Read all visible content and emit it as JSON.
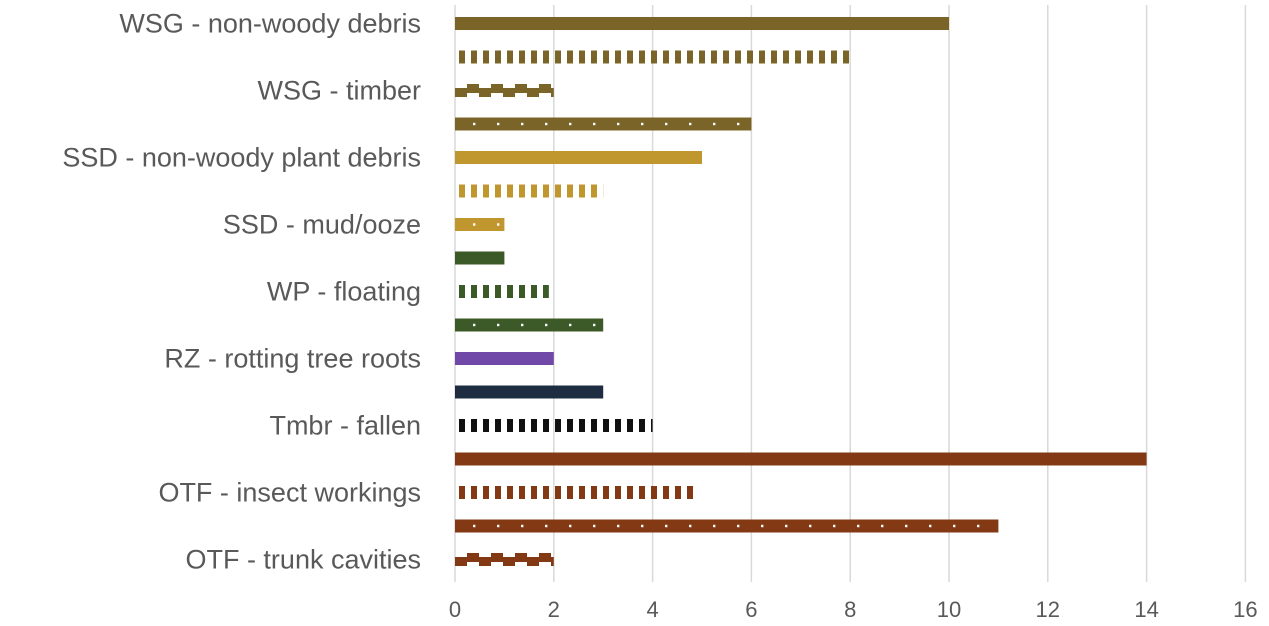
{
  "chart_data": {
    "type": "bar",
    "orientation": "horizontal",
    "title": "",
    "xlabel": "",
    "ylabel": "",
    "xlim": [
      0,
      16
    ],
    "xticks": [
      0,
      2,
      4,
      6,
      8,
      10,
      12,
      14,
      16
    ],
    "grid": "vertical",
    "legend": "none",
    "rows": [
      {
        "label": "WSG - non-woody debris",
        "value": 10,
        "color": "#7a6428",
        "pattern": "solid"
      },
      {
        "label": "",
        "value": 8,
        "color": "#7a6428",
        "pattern": "dashed"
      },
      {
        "label": "WSG - timber",
        "value": 2,
        "color": "#7a6428",
        "pattern": "checker"
      },
      {
        "label": "",
        "value": 6,
        "color": "#7a6428",
        "pattern": "dotted"
      },
      {
        "label": "SSD - non-woody plant debris",
        "value": 5,
        "color": "#c0962f",
        "pattern": "solid"
      },
      {
        "label": "",
        "value": 3,
        "color": "#c0962f",
        "pattern": "dashed"
      },
      {
        "label": "SSD - mud/ooze",
        "value": 1,
        "color": "#c0962f",
        "pattern": "dotted"
      },
      {
        "label": "",
        "value": 1,
        "color": "#3c5a28",
        "pattern": "solid"
      },
      {
        "label": "WP - floating",
        "value": 1.9,
        "color": "#3c5a28",
        "pattern": "dashed"
      },
      {
        "label": "",
        "value": 3,
        "color": "#3c5a28",
        "pattern": "dotted"
      },
      {
        "label": "RZ - rotting tree roots",
        "value": 2,
        "color": "#7048a8",
        "pattern": "solid"
      },
      {
        "label": "",
        "value": 3,
        "color": "#1d2c40",
        "pattern": "solid"
      },
      {
        "label": "Tmbr - fallen",
        "value": 4,
        "color": "#111111",
        "pattern": "dashed"
      },
      {
        "label": "",
        "value": 14,
        "color": "#833a14",
        "pattern": "solid"
      },
      {
        "label": "OTF - insect workings",
        "value": 4.9,
        "color": "#833a14",
        "pattern": "dashed"
      },
      {
        "label": "",
        "value": 11,
        "color": "#833a14",
        "pattern": "dotted"
      },
      {
        "label": "OTF - trunk cavities",
        "value": 2,
        "color": "#833a14",
        "pattern": "checker"
      }
    ]
  }
}
